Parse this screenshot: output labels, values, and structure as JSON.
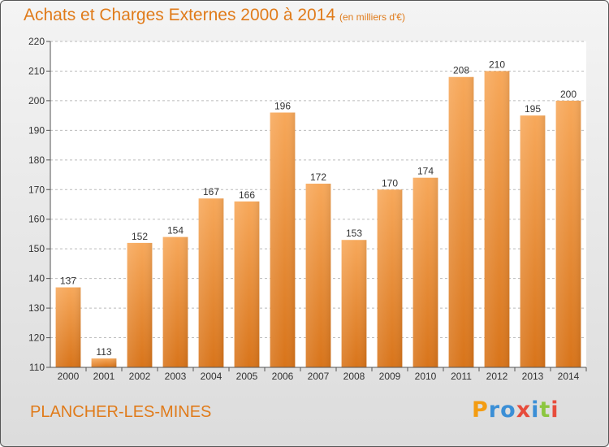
{
  "title": "Achats et Charges Externes 2000 à 2014",
  "subtitle": "(en milliers d'€)",
  "commune": "PLANCHER-LES-MINES",
  "logo": {
    "letters": [
      "P",
      "r",
      "o",
      "x",
      "i",
      "t",
      "i"
    ],
    "colors": [
      "#f39c12",
      "#3b8fd6",
      "#3b8fd6",
      "#e74c3c",
      "#3b8fd6",
      "#8cc63f",
      "#e74c3c"
    ]
  },
  "colors": {
    "accent": "#e07b1a",
    "bar_top": "#f7a85a",
    "bar_bottom": "#d8741a",
    "grid": "#bbbbbb"
  },
  "chart_data": {
    "type": "bar",
    "categories": [
      "2000",
      "2001",
      "2002",
      "2003",
      "2004",
      "2005",
      "2006",
      "2007",
      "2008",
      "2009",
      "2010",
      "2011",
      "2012",
      "2013",
      "2014"
    ],
    "values": [
      137,
      113,
      152,
      154,
      167,
      166,
      196,
      172,
      153,
      170,
      174,
      208,
      210,
      195,
      200
    ],
    "data_labels": [
      "137",
      "113",
      "152",
      "154",
      "167",
      "166",
      "196",
      "172",
      "153",
      "170",
      "174",
      "208",
      "210",
      "195",
      "200"
    ],
    "ylim": [
      110,
      220
    ],
    "yticks": [
      110,
      120,
      130,
      140,
      150,
      160,
      170,
      180,
      190,
      200,
      210,
      220
    ],
    "grid": true
  }
}
